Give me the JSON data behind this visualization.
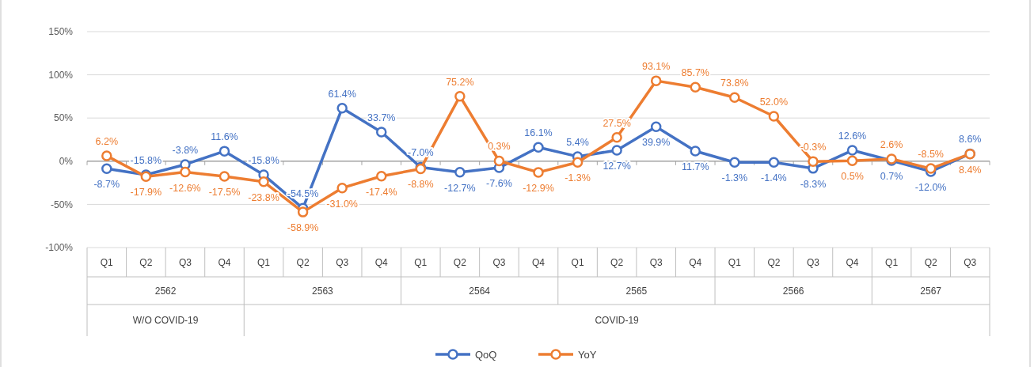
{
  "chart_data": {
    "type": "line",
    "categories": [
      "Q1",
      "Q2",
      "Q3",
      "Q4",
      "Q1",
      "Q2",
      "Q3",
      "Q4",
      "Q1",
      "Q2",
      "Q3",
      "Q4",
      "Q1",
      "Q2",
      "Q3",
      "Q4",
      "Q1",
      "Q2",
      "Q3",
      "Q4",
      "Q1",
      "Q2",
      "Q3"
    ],
    "series": [
      {
        "name": "QoQ",
        "color": "#4472c4",
        "values": [
          -8.7,
          -15.8,
          -3.8,
          11.6,
          -15.8,
          -54.5,
          61.4,
          33.7,
          -7.0,
          -12.7,
          -7.6,
          16.1,
          5.4,
          12.7,
          39.9,
          11.7,
          -1.3,
          -1.4,
          -8.3,
          12.6,
          0.7,
          -12.0,
          8.6
        ],
        "value_labels": [
          "-8.7%",
          "-15.8%",
          "-3.8%",
          "11.6%",
          "-15.8%",
          "-54.5%",
          "61.4%",
          "33.7%",
          "-7.0%",
          "-12.7%",
          "-7.6%",
          "16.1%",
          "5.4%",
          "12.7%",
          "39.9%",
          "11.7%",
          "-1.3%",
          "-1.4%",
          "-8.3%",
          "12.6%",
          "0.7%",
          "-12.0%",
          "8.6%"
        ]
      },
      {
        "name": "YoY",
        "color": "#ed7d31",
        "values": [
          6.2,
          -17.9,
          -12.6,
          -17.5,
          -23.8,
          -58.9,
          -31.0,
          -17.4,
          -8.8,
          75.2,
          0.3,
          -12.9,
          -1.3,
          27.5,
          93.1,
          85.7,
          73.8,
          52.0,
          -0.3,
          0.5,
          2.6,
          -8.5,
          8.4
        ],
        "value_labels": [
          "6.2%",
          "-17.9%",
          "-12.6%",
          "-17.5%",
          "-23.8%",
          "-58.9%",
          "-31.0%",
          "-17.4%",
          "-8.8%",
          "75.2%",
          "0.3%",
          "-12.9%",
          "-1.3%",
          "27.5%",
          "93.1%",
          "85.7%",
          "73.8%",
          "52.0%",
          "-0.3%",
          "0.5%",
          "2.6%",
          "-8.5%",
          "8.4%"
        ]
      }
    ],
    "ylim": [
      -100,
      150
    ],
    "yticks": [
      {
        "value": -100,
        "label": "-100%"
      },
      {
        "value": -50,
        "label": "-50%"
      },
      {
        "value": 0,
        "label": "0%"
      },
      {
        "value": 50,
        "label": "50%"
      },
      {
        "value": 100,
        "label": "100%"
      },
      {
        "value": 150,
        "label": "150%"
      }
    ],
    "annotations": [
      "2562",
      "2563",
      "2564",
      "2565",
      "2566",
      "2567",
      "W/O COVID-19",
      "COVID-19"
    ],
    "grid": "y",
    "legend": "bottom",
    "marker": "circle",
    "line_style": "solid"
  }
}
